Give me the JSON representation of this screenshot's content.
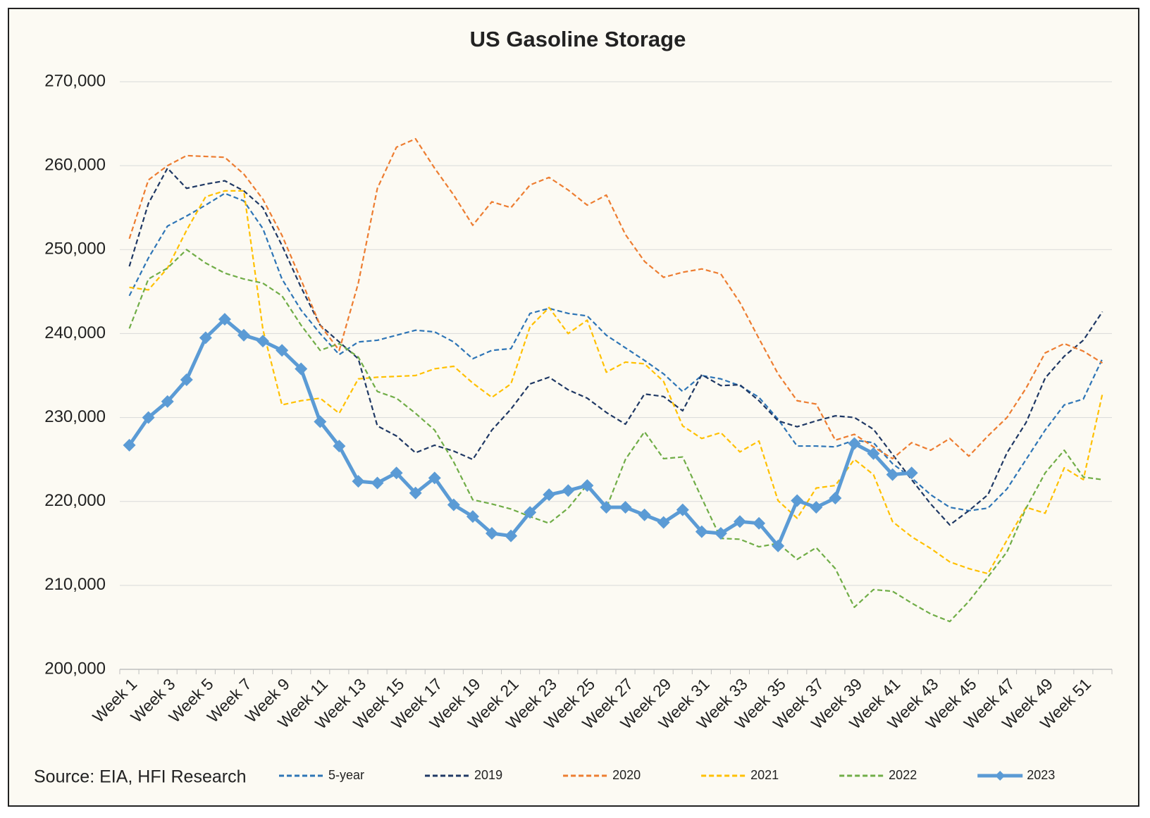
{
  "chart_data": {
    "type": "line",
    "title": "US Gasoline Storage",
    "source": "Source: EIA, HFI Research",
    "categories": [
      "Week 1",
      null,
      "Week 3",
      null,
      "Week 5",
      null,
      "Week 7",
      null,
      "Week 9",
      null,
      "Week 11",
      null,
      "Week 13",
      null,
      "Week 15",
      null,
      "Week 17",
      null,
      "Week 19",
      null,
      "Week 21",
      null,
      "Week 23",
      null,
      "Week 25",
      null,
      "Week 27",
      null,
      "Week 29",
      null,
      "Week 31",
      null,
      "Week 33",
      null,
      "Week 35",
      null,
      "Week 37",
      null,
      "Week 39",
      null,
      "Week 41",
      null,
      "Week 43",
      null,
      "Week 45",
      null,
      "Week 47",
      null,
      "Week 49",
      null,
      "Week 51",
      null
    ],
    "ylim": [
      200000,
      270000
    ],
    "yticks": [
      {
        "value": 200000,
        "label": "200,000"
      },
      {
        "value": 210000,
        "label": "210,000"
      },
      {
        "value": 220000,
        "label": "220,000"
      },
      {
        "value": 230000,
        "label": "230,000"
      },
      {
        "value": 240000,
        "label": "240,000"
      },
      {
        "value": 250000,
        "label": "250,000"
      },
      {
        "value": 260000,
        "label": "260,000"
      },
      {
        "value": 270000,
        "label": "270,000"
      }
    ],
    "grid": true,
    "legend": "bottom",
    "series": [
      {
        "name": "5-year",
        "color": "#2e75b6",
        "dashed": true,
        "values": [
          244500,
          249000,
          252800,
          254000,
          255300,
          256700,
          255800,
          252500,
          246500,
          242800,
          240000,
          237500,
          239000,
          239200,
          239800,
          240400,
          240200,
          239000,
          237000,
          238000,
          238200,
          242400,
          243000,
          242400,
          242100,
          239800,
          238300,
          236800,
          235200,
          233100,
          235000,
          234600,
          233800,
          232400,
          229800,
          226600,
          226600,
          226500,
          227300,
          227000,
          224500,
          222800,
          220800,
          219300,
          218900,
          219200,
          221500,
          225000,
          228500,
          231500,
          232200,
          237000
        ]
      },
      {
        "name": "2019",
        "color": "#1f3864",
        "dashed": true,
        "values": [
          248000,
          255500,
          259700,
          257300,
          257800,
          258200,
          257000,
          255000,
          250500,
          245500,
          241000,
          239000,
          237000,
          229000,
          227800,
          225800,
          226700,
          226000,
          225000,
          228500,
          231000,
          234000,
          234800,
          233300,
          232300,
          230600,
          229200,
          232800,
          232500,
          230800,
          235100,
          233800,
          233900,
          232000,
          229600,
          228900,
          229600,
          230200,
          230000,
          228600,
          225600,
          222600,
          219700,
          217200,
          218900,
          220800,
          225800,
          229400,
          234700,
          237300,
          239200,
          242600
        ]
      },
      {
        "name": "2020",
        "color": "#ed7d31",
        "dashed": true,
        "values": [
          251300,
          258300,
          260000,
          261200,
          261100,
          261000,
          259000,
          256000,
          251700,
          246400,
          241000,
          238000,
          246000,
          257300,
          262200,
          263200,
          259700,
          256500,
          252900,
          255700,
          255000,
          257700,
          258600,
          257100,
          255300,
          256500,
          251800,
          248600,
          246700,
          247300,
          247700,
          247100,
          243700,
          239400,
          235200,
          232000,
          231600,
          227300,
          228000,
          226500,
          225100,
          227000,
          226100,
          227500,
          225400,
          227800,
          230000,
          233500,
          237700,
          238800,
          237900,
          236500
        ]
      },
      {
        "name": "2021",
        "color": "#ffc000",
        "dashed": true,
        "values": [
          245500,
          245200,
          247800,
          252300,
          256300,
          257000,
          257000,
          240500,
          231500,
          232000,
          232300,
          230500,
          234600,
          234800,
          234900,
          235000,
          235800,
          236100,
          234100,
          232400,
          234000,
          240800,
          243100,
          240000,
          241600,
          235400,
          236600,
          236400,
          234300,
          229000,
          227500,
          228200,
          225900,
          227200,
          220100,
          218000,
          221600,
          221900,
          225000,
          223200,
          217600,
          215800,
          214400,
          212800,
          212000,
          211400,
          215400,
          219300,
          218600,
          224000,
          222600,
          232800
        ]
      },
      {
        "name": "2022",
        "color": "#70ad47",
        "dashed": true,
        "values": [
          240600,
          246500,
          247800,
          250000,
          248400,
          247200,
          246500,
          246000,
          244500,
          241000,
          238000,
          238800,
          237200,
          233100,
          232300,
          230500,
          228500,
          224700,
          220200,
          219700,
          219100,
          218200,
          217400,
          219200,
          222000,
          219200,
          225000,
          228300,
          225100,
          225300,
          220400,
          215600,
          215500,
          214600,
          215000,
          213100,
          214500,
          212000,
          207400,
          209500,
          209300,
          207900,
          206600,
          205700,
          208100,
          211000,
          214000,
          219200,
          223400,
          226100,
          222900,
          222600
        ]
      },
      {
        "name": "2023",
        "color": "#5b9bd5",
        "dashed": false,
        "marker": "diamond",
        "values": [
          226700,
          230000,
          231900,
          234500,
          239500,
          241700,
          239800,
          239100,
          238000,
          235800,
          229500,
          226600,
          222400,
          222200,
          223400,
          221000,
          222800,
          219600,
          218200,
          216200,
          215900,
          218700,
          220800,
          221300,
          221900,
          219300,
          219300,
          218400,
          217500,
          219000,
          216400,
          216200,
          217600,
          217400,
          214700,
          220100,
          219300,
          220400,
          226900,
          225700,
          223200,
          223400,
          null,
          null,
          null,
          null,
          null,
          null,
          null,
          null,
          null,
          null
        ]
      }
    ]
  }
}
